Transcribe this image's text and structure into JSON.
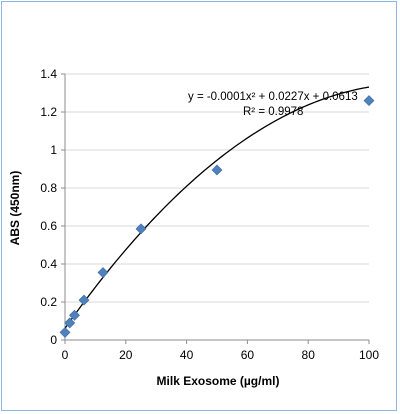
{
  "chart_data": {
    "type": "scatter",
    "title": "",
    "xlabel": "Milk Exosome (µg/ml)",
    "ylabel": "ABS (450nm)",
    "xlim": [
      0,
      100
    ],
    "ylim": [
      0,
      1.4
    ],
    "x_ticks": [
      "0",
      "20",
      "40",
      "60",
      "80",
      "100"
    ],
    "y_ticks": [
      "0",
      "0.2",
      "0.4",
      "0.6",
      "0.8",
      "1",
      "1.2",
      "1.4"
    ],
    "grid": true,
    "legend": "none",
    "series": [
      {
        "x": [
          0,
          1.56,
          3.13,
          6.25,
          12.5,
          25,
          50,
          100
        ],
        "y": [
          0.04,
          0.09,
          0.13,
          0.21,
          0.355,
          0.585,
          0.895,
          1.26
        ],
        "marker": "diamond",
        "color": "#4f81bd"
      }
    ],
    "trendline": {
      "type": "polynomial",
      "order": 2,
      "coefficients": [
        -0.0001,
        0.0227,
        0.0613
      ],
      "color": "#000000",
      "equation_label": "y = -0.0001x² + 0.0227x + 0.0613",
      "r2_label": "R² = 0.9978"
    }
  }
}
